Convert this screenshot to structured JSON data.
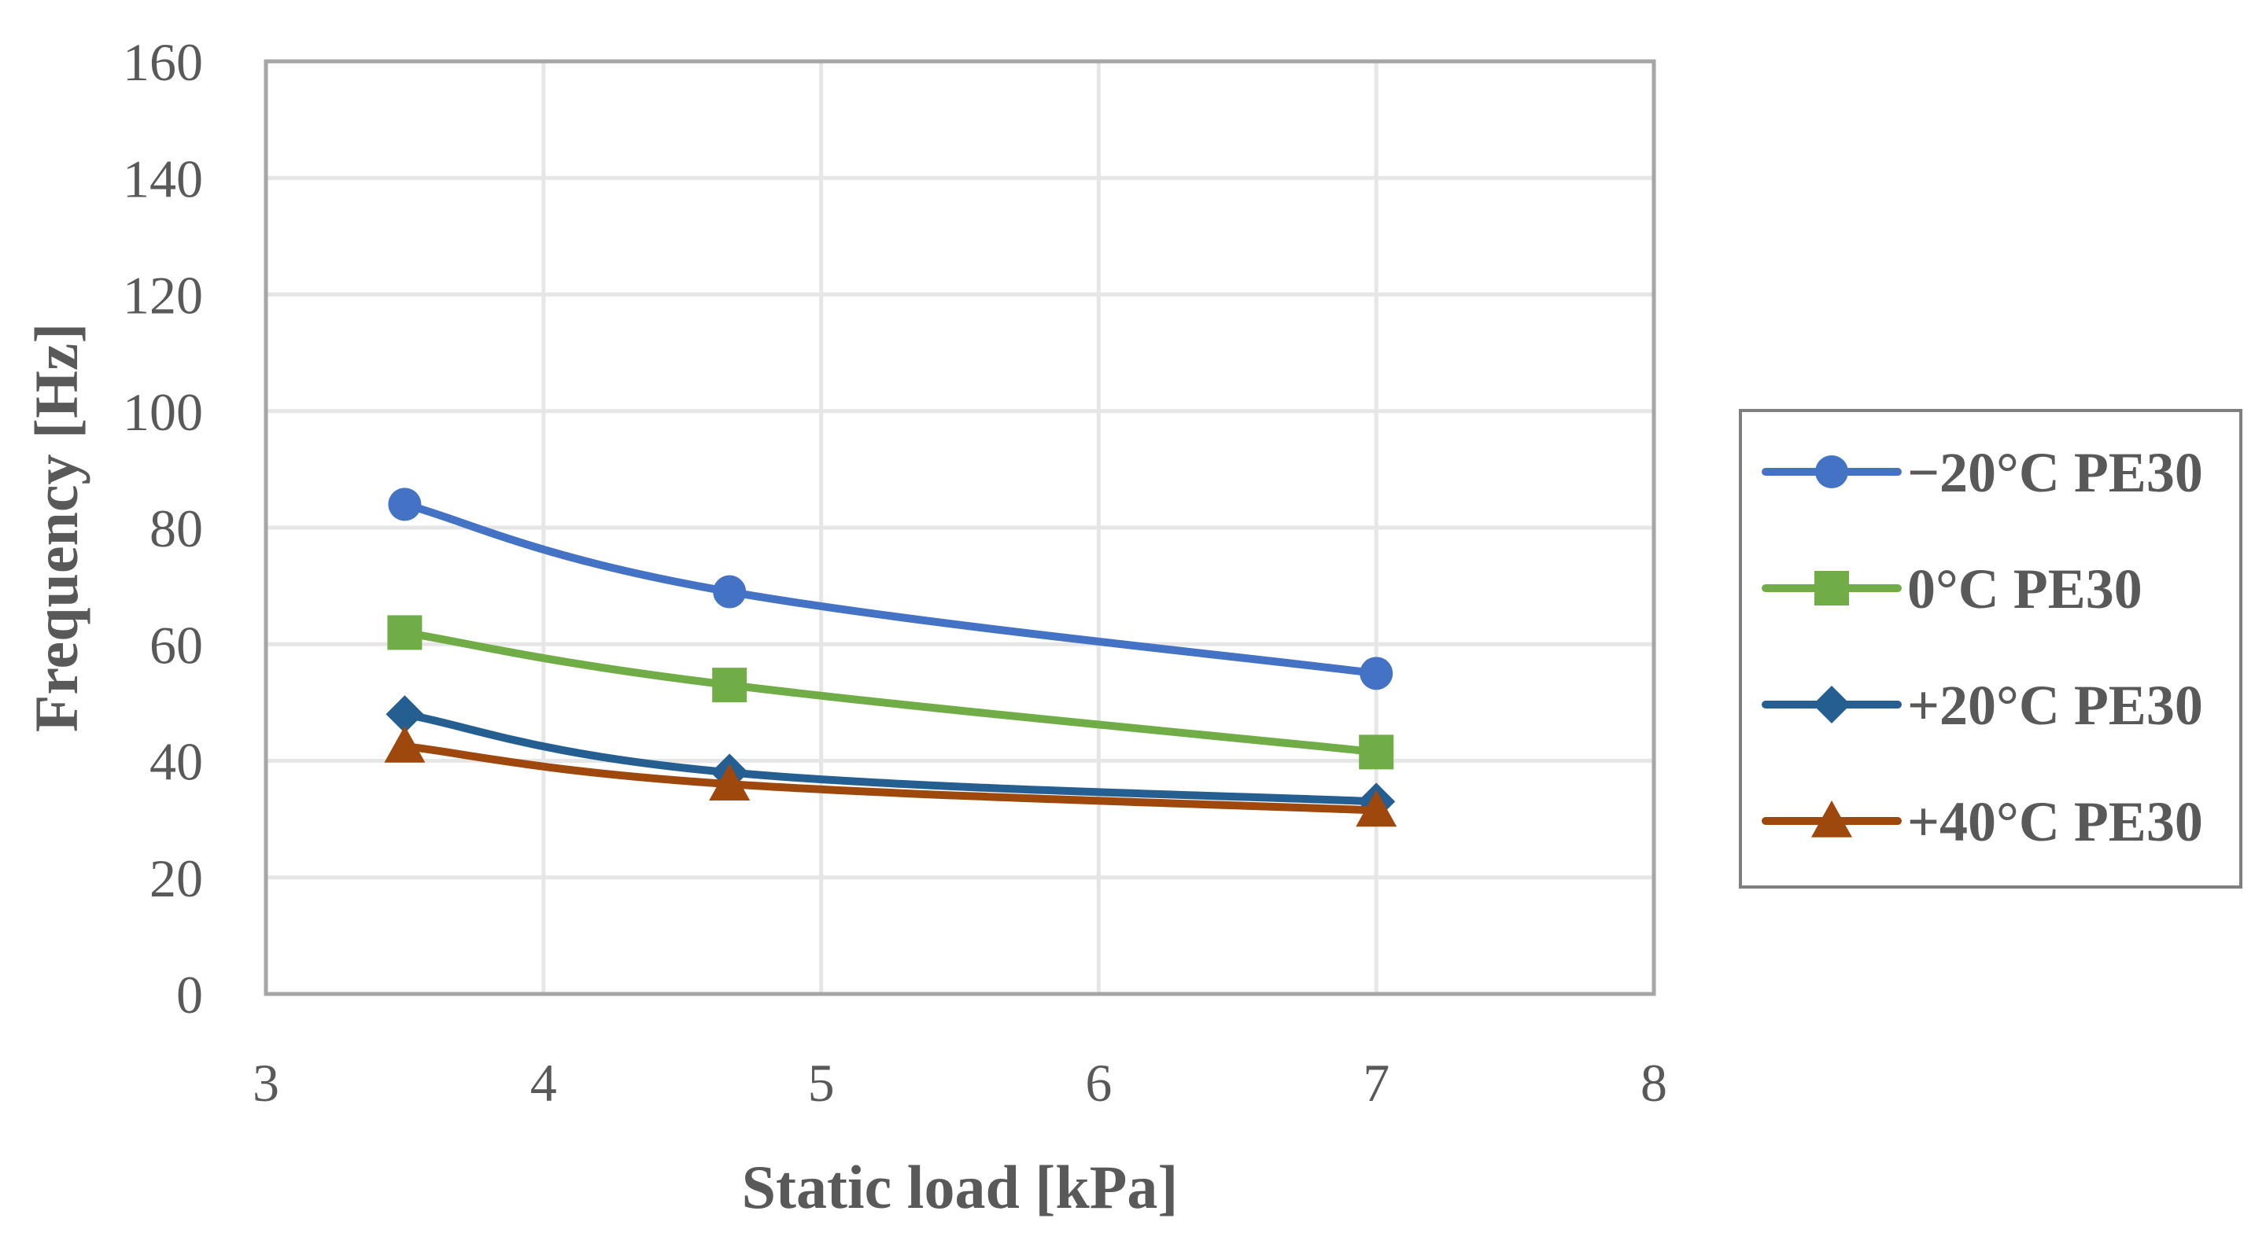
{
  "chart_data": {
    "type": "line",
    "title": "",
    "xlabel": "Static load [kPa]",
    "ylabel": "Frequency [Hz]",
    "xlim": [
      3,
      8
    ],
    "ylim": [
      0,
      160
    ],
    "xticks": [
      3,
      4,
      5,
      6,
      7,
      8
    ],
    "yticks": [
      0,
      20,
      40,
      60,
      80,
      100,
      120,
      140,
      160
    ],
    "grid": true,
    "legend_position": "right",
    "series": [
      {
        "name": "−20°C PE30",
        "marker": "circle",
        "color": "#4472C4",
        "x": [
          3.5,
          4.67,
          7.0
        ],
        "y": [
          84,
          69,
          55
        ]
      },
      {
        "name": "0°C PE30",
        "marker": "square",
        "color": "#70AD47",
        "x": [
          3.5,
          4.67,
          7.0
        ],
        "y": [
          62,
          53,
          41.5
        ]
      },
      {
        "name": "+20°C PE30",
        "marker": "diamond",
        "color": "#255E91",
        "x": [
          3.5,
          4.67,
          7.0
        ],
        "y": [
          48,
          38,
          33
        ]
      },
      {
        "name": "+40°C PE30",
        "marker": "triangle",
        "color": "#9E480E",
        "x": [
          3.5,
          4.67,
          7.0
        ],
        "y": [
          42.5,
          36,
          31.5
        ]
      }
    ]
  }
}
